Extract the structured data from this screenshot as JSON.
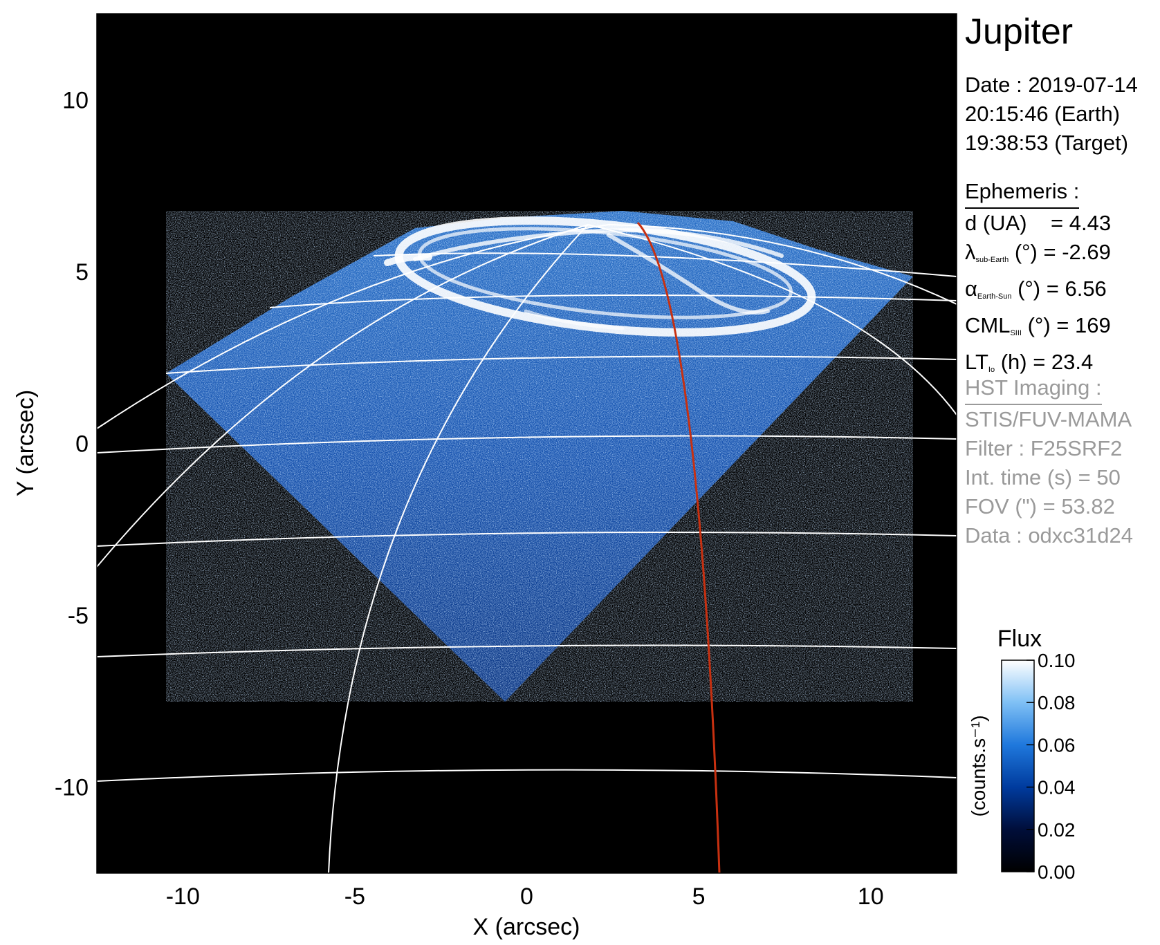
{
  "figure": {
    "title": "Jupiter",
    "date_lines": [
      "Date : 2019-07-14",
      "20:15:46 (Earth)",
      "19:38:53 (Target)"
    ],
    "ephemeris": {
      "heading": "Ephemeris :",
      "rows": [
        {
          "label": "d (UA)",
          "sub": "",
          "unit": "",
          "value": "= 4.43"
        },
        {
          "label": "λ",
          "sub": "sub-Earth",
          "unit": "(°)",
          "value": "= -2.69"
        },
        {
          "label": "α",
          "sub": "Earth-Sun",
          "unit": "(°)",
          "value": "= 6.56"
        },
        {
          "label": "CML",
          "sub": "SIII",
          "unit": "(°)",
          "value": "= 169"
        },
        {
          "label": "LT",
          "sub": "Io",
          "unit": "(h)",
          "value": "= 23.4"
        }
      ]
    },
    "hst": {
      "heading": "HST Imaging :",
      "lines": [
        "STIS/FUV-MAMA",
        "Filter : F25SRF2",
        "Int. time (s) = 50",
        "FOV (\") = 53.82",
        "Data : odxc31d24"
      ]
    },
    "axes": {
      "xlabel": "X (arcsec)",
      "ylabel": "Y (arcsec)",
      "x_ticks": [
        -10,
        -5,
        0,
        5,
        10
      ],
      "y_ticks": [
        10,
        5,
        0,
        -5,
        -10
      ],
      "xlim": [
        -12.5,
        12.5
      ],
      "ylim": [
        -12.5,
        12.5
      ]
    },
    "colorbar": {
      "label": "Flux",
      "unit": "(counts.s⁻¹)",
      "ticks": [
        "0.10",
        "0.08",
        "0.06",
        "0.04",
        "0.02",
        "0.00"
      ],
      "range": [
        0.0,
        0.1
      ],
      "colors": [
        "#000000",
        "#000e3a",
        "#003b9e",
        "#1f78dc",
        "#7fc0f5",
        "#ffffff"
      ]
    },
    "colors": {
      "background": "#000000",
      "grid": "#ffffff",
      "meridian": "#c83010",
      "aurora": "#ffffff",
      "emission": "#2a6fd0"
    }
  }
}
